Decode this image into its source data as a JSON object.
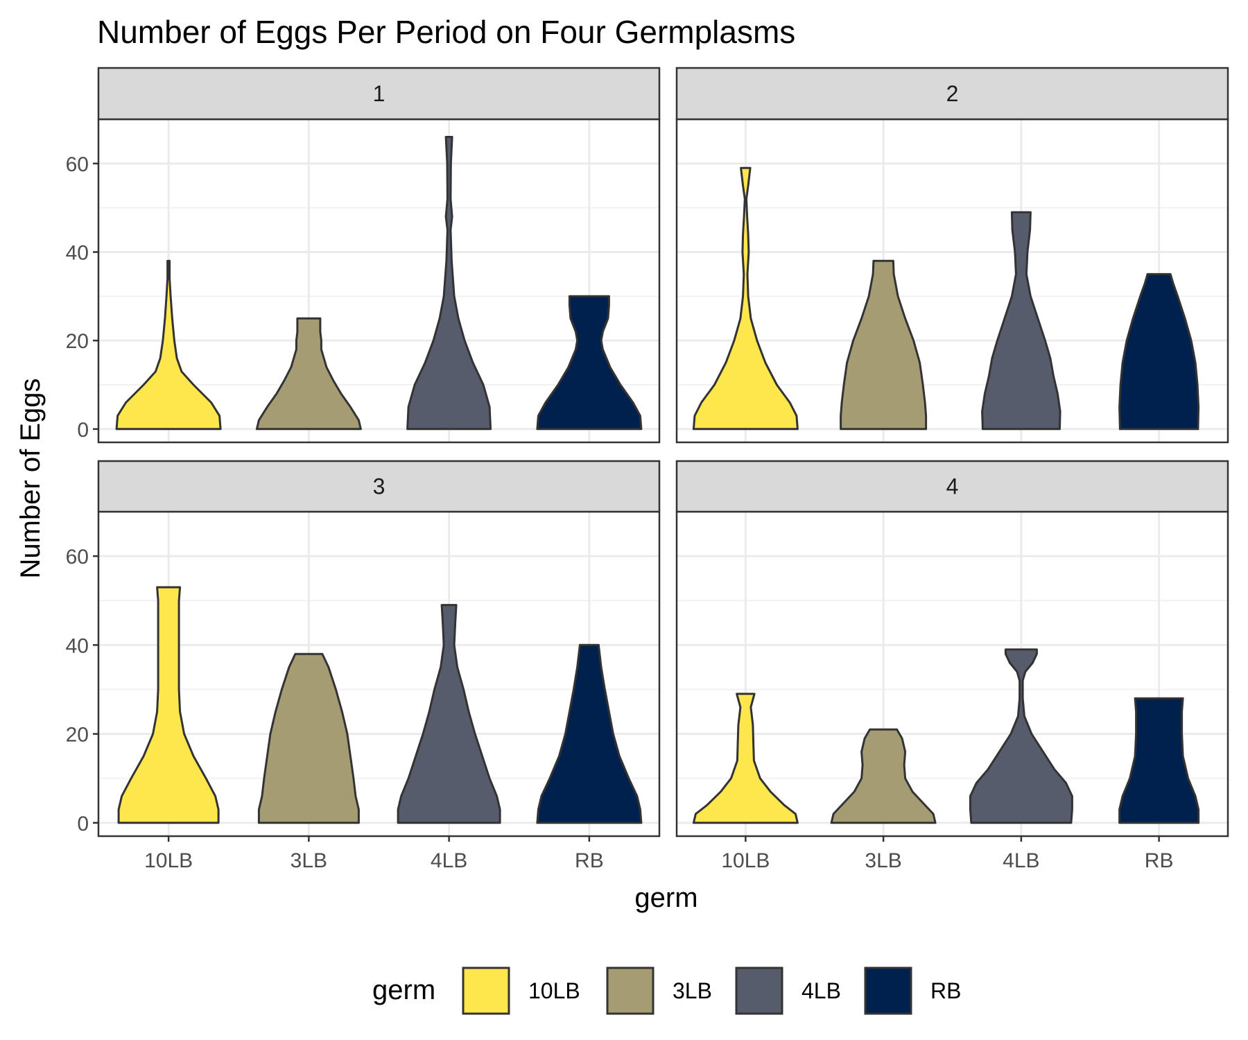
{
  "chart_data": {
    "type": "violin",
    "title": "Number of Eggs Per Period on Four Germplasms",
    "xlabel": "germ",
    "ylabel": "Number of Eggs",
    "categories": [
      "10LB",
      "3LB",
      "4LB",
      "RB"
    ],
    "ylim": [
      -3,
      70
    ],
    "yticks": [
      0,
      20,
      40,
      60
    ],
    "grid": true,
    "legend": {
      "title": "germ",
      "position": "bottom",
      "items": [
        {
          "label": "10LB",
          "color": "#FDE74C"
        },
        {
          "label": "3LB",
          "color": "#A59C74"
        },
        {
          "label": "4LB",
          "color": "#575C6D"
        },
        {
          "label": "RB",
          "color": "#00204D"
        }
      ]
    },
    "panels": [
      {
        "label": "1",
        "violins": [
          {
            "germ": "10LB",
            "max": 38,
            "profile": [
              [
                0,
                1.0
              ],
              [
                3,
                0.98
              ],
              [
                6,
                0.82
              ],
              [
                10,
                0.48
              ],
              [
                13,
                0.25
              ],
              [
                16,
                0.16
              ],
              [
                20,
                0.11
              ],
              [
                25,
                0.07
              ],
              [
                30,
                0.04
              ],
              [
                34,
                0.02
              ],
              [
                38,
                0.02
              ]
            ]
          },
          {
            "germ": "3LB",
            "max": 25,
            "profile": [
              [
                0,
                1.0
              ],
              [
                2,
                0.96
              ],
              [
                5,
                0.8
              ],
              [
                8,
                0.62
              ],
              [
                11,
                0.47
              ],
              [
                14,
                0.34
              ],
              [
                18,
                0.24
              ],
              [
                20,
                0.24
              ],
              [
                22,
                0.22
              ],
              [
                25,
                0.22
              ]
            ]
          },
          {
            "germ": "4LB",
            "max": 66,
            "profile": [
              [
                0,
                0.8
              ],
              [
                5,
                0.78
              ],
              [
                10,
                0.66
              ],
              [
                15,
                0.46
              ],
              [
                20,
                0.3
              ],
              [
                25,
                0.18
              ],
              [
                30,
                0.1
              ],
              [
                38,
                0.05
              ],
              [
                45,
                0.03
              ],
              [
                48,
                0.06
              ],
              [
                52,
                0.03
              ],
              [
                60,
                0.035
              ],
              [
                66,
                0.06
              ]
            ]
          },
          {
            "germ": "RB",
            "max": 30,
            "profile": [
              [
                0,
                1.0
              ],
              [
                3,
                0.98
              ],
              [
                6,
                0.84
              ],
              [
                10,
                0.6
              ],
              [
                14,
                0.4
              ],
              [
                18,
                0.26
              ],
              [
                20,
                0.23
              ],
              [
                22,
                0.26
              ],
              [
                25,
                0.36
              ],
              [
                28,
                0.38
              ],
              [
                30,
                0.38
              ]
            ]
          }
        ]
      },
      {
        "label": "2",
        "violins": [
          {
            "germ": "10LB",
            "max": 59,
            "profile": [
              [
                0,
                1.0
              ],
              [
                3,
                0.98
              ],
              [
                6,
                0.85
              ],
              [
                10,
                0.6
              ],
              [
                15,
                0.38
              ],
              [
                20,
                0.22
              ],
              [
                25,
                0.1
              ],
              [
                30,
                0.05
              ],
              [
                35,
                0.035
              ],
              [
                40,
                0.06
              ],
              [
                44,
                0.05
              ],
              [
                48,
                0.03
              ],
              [
                52,
                0.015
              ],
              [
                55,
                0.05
              ],
              [
                59,
                0.09
              ]
            ]
          },
          {
            "germ": "3LB",
            "max": 38,
            "profile": [
              [
                0,
                0.82
              ],
              [
                3,
                0.82
              ],
              [
                6,
                0.8
              ],
              [
                10,
                0.76
              ],
              [
                15,
                0.7
              ],
              [
                20,
                0.58
              ],
              [
                25,
                0.42
              ],
              [
                30,
                0.28
              ],
              [
                35,
                0.2
              ],
              [
                38,
                0.19
              ]
            ]
          },
          {
            "germ": "4LB",
            "max": 49,
            "profile": [
              [
                0,
                0.74
              ],
              [
                4,
                0.75
              ],
              [
                8,
                0.7
              ],
              [
                12,
                0.62
              ],
              [
                16,
                0.56
              ],
              [
                20,
                0.46
              ],
              [
                25,
                0.32
              ],
              [
                30,
                0.18
              ],
              [
                35,
                0.1
              ],
              [
                40,
                0.12
              ],
              [
                45,
                0.17
              ],
              [
                49,
                0.18
              ]
            ]
          },
          {
            "germ": "RB",
            "max": 35,
            "profile": [
              [
                0,
                0.75
              ],
              [
                5,
                0.76
              ],
              [
                10,
                0.74
              ],
              [
                15,
                0.7
              ],
              [
                20,
                0.62
              ],
              [
                25,
                0.5
              ],
              [
                30,
                0.36
              ],
              [
                33,
                0.27
              ],
              [
                35,
                0.22
              ]
            ]
          }
        ]
      },
      {
        "label": "3",
        "violins": [
          {
            "germ": "10LB",
            "max": 53,
            "profile": [
              [
                0,
                0.96
              ],
              [
                3,
                0.96
              ],
              [
                6,
                0.9
              ],
              [
                10,
                0.72
              ],
              [
                15,
                0.48
              ],
              [
                20,
                0.3
              ],
              [
                25,
                0.22
              ],
              [
                30,
                0.2
              ],
              [
                40,
                0.2
              ],
              [
                50,
                0.2
              ],
              [
                53,
                0.22
              ]
            ]
          },
          {
            "germ": "3LB",
            "max": 38,
            "profile": [
              [
                0,
                0.96
              ],
              [
                3,
                0.96
              ],
              [
                6,
                0.9
              ],
              [
                10,
                0.86
              ],
              [
                15,
                0.8
              ],
              [
                20,
                0.74
              ],
              [
                25,
                0.64
              ],
              [
                30,
                0.52
              ],
              [
                35,
                0.38
              ],
              [
                38,
                0.26
              ]
            ]
          },
          {
            "germ": "4LB",
            "max": 49,
            "profile": [
              [
                0,
                0.98
              ],
              [
                3,
                0.98
              ],
              [
                6,
                0.92
              ],
              [
                10,
                0.78
              ],
              [
                15,
                0.64
              ],
              [
                20,
                0.5
              ],
              [
                25,
                0.38
              ],
              [
                30,
                0.28
              ],
              [
                35,
                0.16
              ],
              [
                40,
                0.1
              ],
              [
                45,
                0.12
              ],
              [
                49,
                0.14
              ]
            ]
          },
          {
            "germ": "RB",
            "max": 40,
            "profile": [
              [
                0,
                1.0
              ],
              [
                3,
                0.98
              ],
              [
                6,
                0.92
              ],
              [
                10,
                0.76
              ],
              [
                15,
                0.58
              ],
              [
                20,
                0.46
              ],
              [
                25,
                0.38
              ],
              [
                30,
                0.3
              ],
              [
                35,
                0.23
              ],
              [
                40,
                0.18
              ]
            ]
          }
        ]
      },
      {
        "label": "4",
        "violins": [
          {
            "germ": "10LB",
            "max": 29,
            "profile": [
              [
                0,
                1.0
              ],
              [
                2,
                0.96
              ],
              [
                4,
                0.74
              ],
              [
                7,
                0.48
              ],
              [
                10,
                0.28
              ],
              [
                14,
                0.16
              ],
              [
                18,
                0.15
              ],
              [
                22,
                0.14
              ],
              [
                26,
                0.1
              ],
              [
                29,
                0.17
              ]
            ]
          },
          {
            "germ": "3LB",
            "max": 21,
            "profile": [
              [
                0,
                1.0
              ],
              [
                2,
                0.96
              ],
              [
                4,
                0.8
              ],
              [
                7,
                0.56
              ],
              [
                10,
                0.42
              ],
              [
                13,
                0.4
              ],
              [
                16,
                0.42
              ],
              [
                19,
                0.36
              ],
              [
                21,
                0.26
              ]
            ]
          },
          {
            "germ": "4LB",
            "max": 39,
            "profile": [
              [
                0,
                0.96
              ],
              [
                3,
                0.98
              ],
              [
                6,
                0.98
              ],
              [
                9,
                0.86
              ],
              [
                12,
                0.64
              ],
              [
                16,
                0.42
              ],
              [
                20,
                0.2
              ],
              [
                24,
                0.06
              ],
              [
                28,
                0.03
              ],
              [
                32,
                0.03
              ],
              [
                34,
                0.08
              ],
              [
                36,
                0.22
              ],
              [
                38,
                0.3
              ],
              [
                39,
                0.3
              ]
            ]
          },
          {
            "germ": "RB",
            "max": 28,
            "profile": [
              [
                0,
                0.76
              ],
              [
                3,
                0.76
              ],
              [
                6,
                0.7
              ],
              [
                10,
                0.56
              ],
              [
                15,
                0.46
              ],
              [
                20,
                0.44
              ],
              [
                25,
                0.44
              ],
              [
                28,
                0.46
              ]
            ]
          }
        ]
      }
    ]
  }
}
